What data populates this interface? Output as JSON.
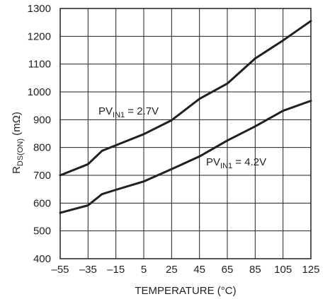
{
  "chart_data": {
    "type": "line",
    "title": "",
    "xlabel": "TEMPERATURE (°C)",
    "ylabel": {
      "prefix": "R",
      "subscript": "DS(ON)",
      "suffix": " (mΩ)"
    },
    "xlim": [
      -55,
      125
    ],
    "ylim": [
      400,
      1300
    ],
    "x_ticks": [
      -55,
      -35,
      -15,
      5,
      25,
      45,
      65,
      85,
      105,
      125
    ],
    "x_tick_labels": [
      "–55",
      "–35",
      "–15",
      "5",
      "25",
      "45",
      "65",
      "85",
      "105",
      "125"
    ],
    "y_ticks": [
      400,
      500,
      600,
      700,
      800,
      900,
      1000,
      1100,
      1200,
      1300
    ],
    "y_tick_labels": [
      "400",
      "500",
      "600",
      "700",
      "800",
      "900",
      "1000",
      "1100",
      "1200",
      "1300"
    ],
    "grid": true,
    "series": [
      {
        "label": {
          "prefix": "PV",
          "subscript": "IN1",
          "suffix": " = 2.7V"
        },
        "x": [
          -55,
          -35,
          -25,
          -15,
          5,
          25,
          45,
          65,
          85,
          105,
          125
        ],
        "y": [
          700,
          740,
          788,
          808,
          848,
          898,
          975,
          1030,
          1120,
          1185,
          1255
        ]
      },
      {
        "label": {
          "prefix": "PV",
          "subscript": "IN1",
          "suffix": " = 4.2V"
        },
        "x": [
          -55,
          -35,
          -25,
          -15,
          5,
          25,
          45,
          65,
          85,
          105,
          125
        ],
        "y": [
          565,
          592,
          632,
          648,
          678,
          722,
          768,
          825,
          876,
          932,
          968
        ]
      }
    ]
  }
}
